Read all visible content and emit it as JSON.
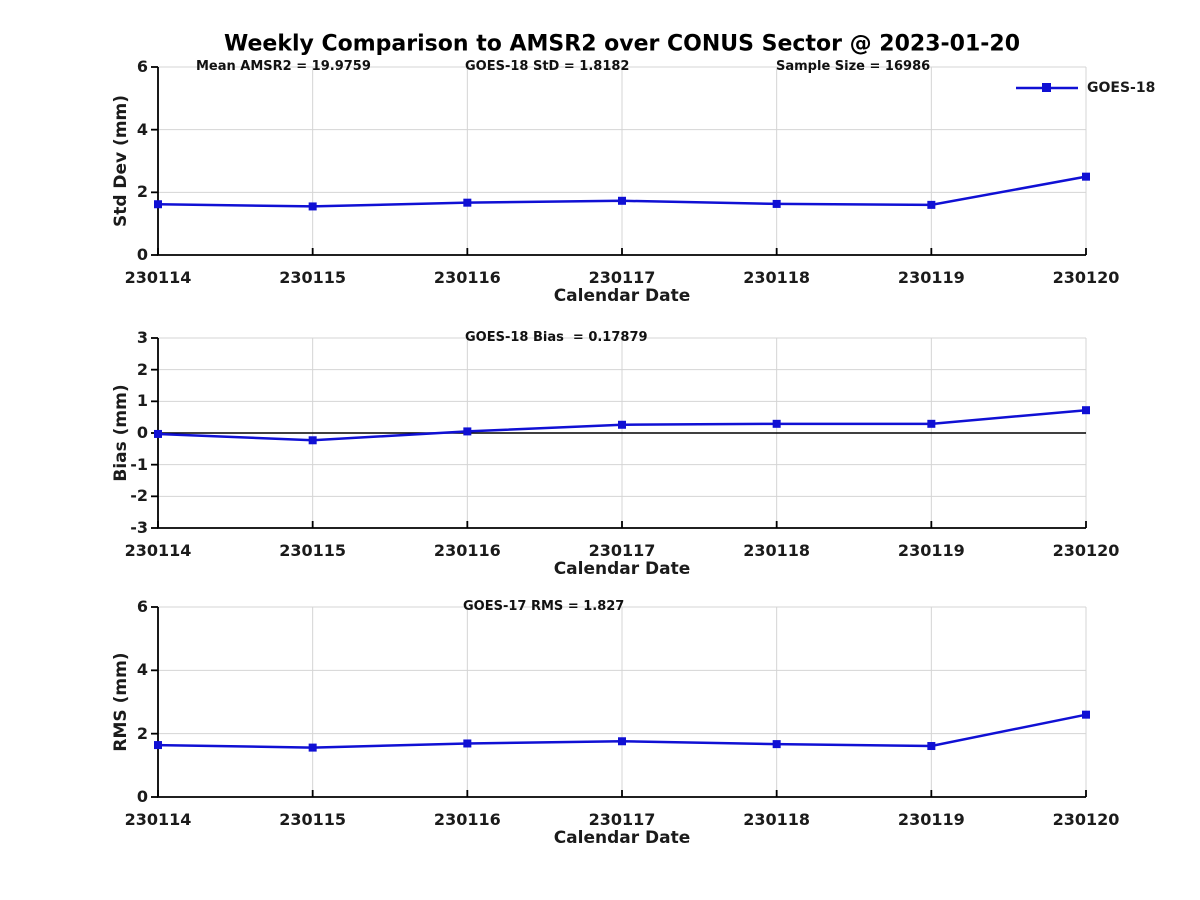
{
  "title": "Weekly Comparison to AMSR2 over CONUS Sector @ 2023-01-20",
  "legend": {
    "label": "GOES-18",
    "position": "top-right"
  },
  "colors": {
    "series_blue": "#1010D4",
    "grid": "#d4d4d4",
    "axis": "#000000",
    "text": "#1b1b1b"
  },
  "chart_data": [
    {
      "type": "line",
      "name": "std_dev_panel",
      "ylabel": "Std Dev (mm)",
      "xlabel": "Calendar Date",
      "ylim": [
        0,
        6
      ],
      "yticks": [
        0,
        2,
        4,
        6
      ],
      "grid": true,
      "legend_entries": [
        "GOES-18"
      ],
      "categories": [
        "230114",
        "230115",
        "230116",
        "230117",
        "230118",
        "230119",
        "230120"
      ],
      "series": [
        {
          "name": "GOES-18",
          "marker": "square",
          "values": [
            1.62,
            1.55,
            1.67,
            1.73,
            1.63,
            1.6,
            2.5
          ]
        }
      ],
      "annotations": [
        {
          "text": "Mean AMSR2 = 19.9759"
        },
        {
          "text": "GOES-18 StD = 1.8182"
        },
        {
          "text": "Sample Size = 16986"
        }
      ]
    },
    {
      "type": "line",
      "name": "bias_panel",
      "ylabel": "Bias (mm)",
      "xlabel": "Calendar Date",
      "ylim": [
        -3,
        3
      ],
      "yticks": [
        -3,
        -2,
        -1,
        0,
        1,
        2,
        3
      ],
      "zero_line": true,
      "grid": true,
      "categories": [
        "230114",
        "230115",
        "230116",
        "230117",
        "230118",
        "230119",
        "230120"
      ],
      "series": [
        {
          "name": "GOES-18",
          "marker": "square",
          "values": [
            -0.03,
            -0.23,
            0.05,
            0.26,
            0.29,
            0.29,
            0.72
          ]
        }
      ],
      "annotations": [
        {
          "text": "GOES-18 Bias  = 0.17879"
        }
      ]
    },
    {
      "type": "line",
      "name": "rms_panel",
      "ylabel": "RMS (mm)",
      "xlabel": "Calendar Date",
      "ylim": [
        0,
        6
      ],
      "yticks": [
        0,
        2,
        4,
        6
      ],
      "grid": true,
      "categories": [
        "230114",
        "230115",
        "230116",
        "230117",
        "230118",
        "230119",
        "230120"
      ],
      "series": [
        {
          "name": "GOES-18",
          "marker": "square",
          "values": [
            1.64,
            1.56,
            1.69,
            1.76,
            1.67,
            1.61,
            2.6
          ]
        }
      ],
      "annotations": [
        {
          "text": "GOES-17 RMS = 1.827"
        }
      ]
    }
  ]
}
